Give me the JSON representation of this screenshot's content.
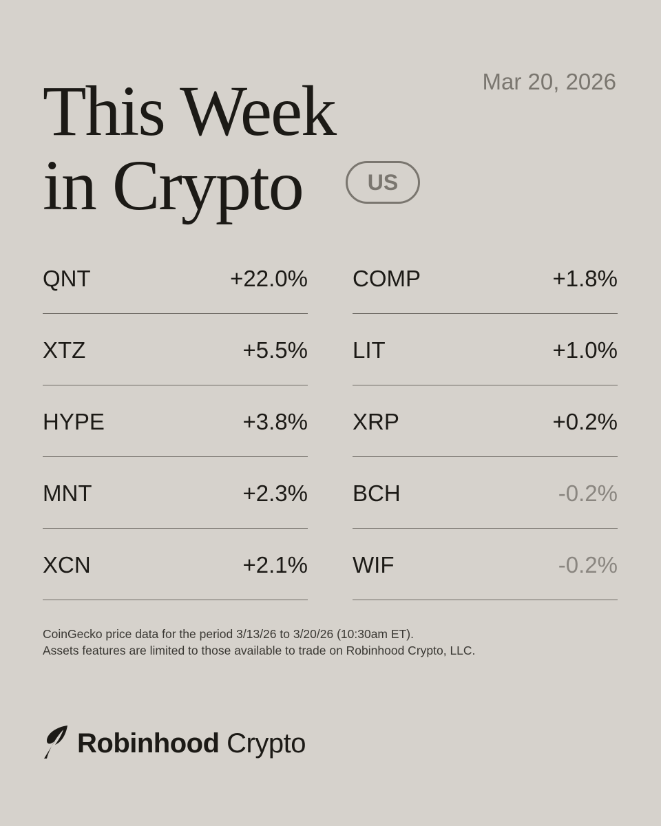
{
  "header": {
    "title_lines": [
      "This Week",
      "in Crypto"
    ],
    "badge": "US",
    "date": "Mar 20, 2026"
  },
  "table": {
    "columns": [
      [
        {
          "ticker": "QNT",
          "change": "+22.0%"
        },
        {
          "ticker": "XTZ",
          "change": "+5.5%"
        },
        {
          "ticker": "HYPE",
          "change": "+3.8%"
        },
        {
          "ticker": "MNT",
          "change": "+2.3%"
        },
        {
          "ticker": "XCN",
          "change": "+2.1%"
        }
      ],
      [
        {
          "ticker": "COMP",
          "change": "+1.8%"
        },
        {
          "ticker": "LIT",
          "change": "+1.0%"
        },
        {
          "ticker": "XRP",
          "change": "+0.2%"
        },
        {
          "ticker": "BCH",
          "change": "-0.2%"
        },
        {
          "ticker": "WIF",
          "change": "-0.2%"
        }
      ]
    ]
  },
  "footnote": {
    "lines": [
      "CoinGecko price data for the period 3/13/26 to 3/20/26 (10:30am ET).",
      "Assets features are limited to those available to trade on Robinhood Crypto, LLC."
    ]
  },
  "brand": {
    "name": "Robinhood",
    "product": "Crypto"
  }
}
